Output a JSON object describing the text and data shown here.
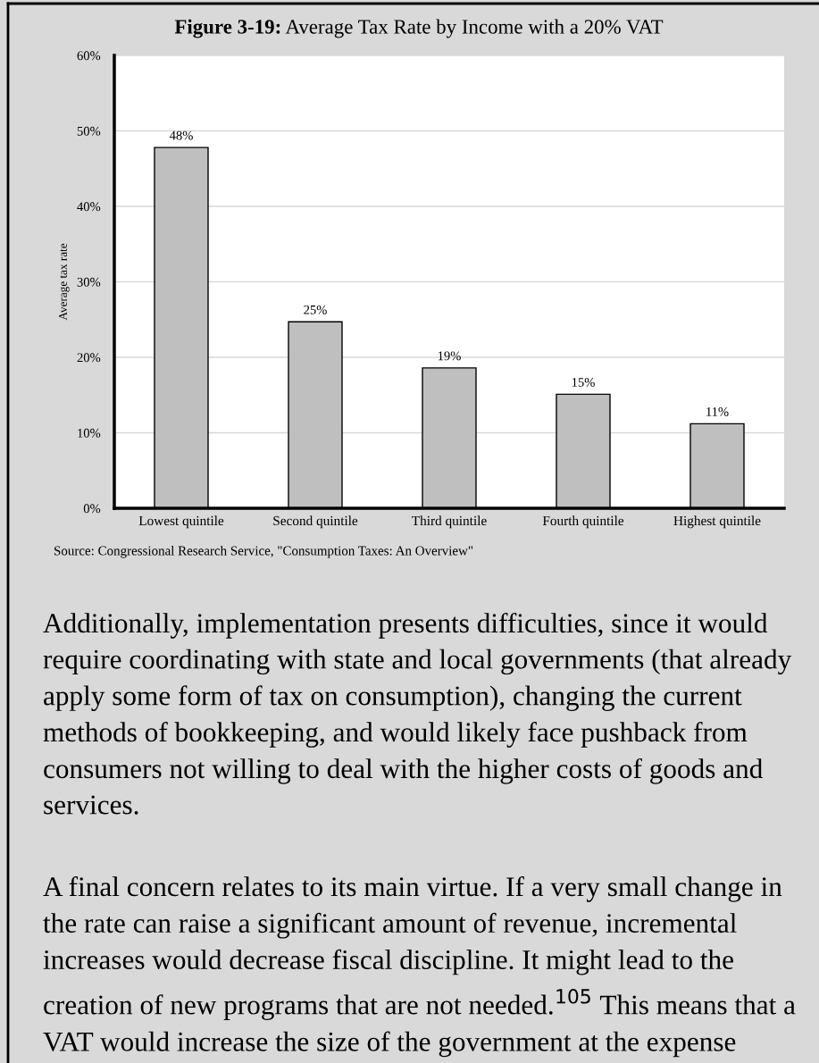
{
  "chart_data": {
    "type": "bar",
    "title": "Figure 3-19: Average Tax Rate by Income with a 20% VAT",
    "ylabel": "Average tax rate",
    "categories": [
      "Lowest quintile",
      "Second quintile",
      "Third quintile",
      "Fourth quintile",
      "Highest quintile"
    ],
    "values": [
      47.8,
      24.7,
      18.6,
      15.1,
      11.2
    ],
    "value_labels": [
      "48%",
      "25%",
      "19%",
      "15%",
      "11%"
    ],
    "color": "#bfbfbf",
    "ylim": [
      0,
      60
    ],
    "yticks": [
      {
        "value": 0,
        "label": "0%"
      },
      {
        "value": 10,
        "label": "10%"
      },
      {
        "value": 20,
        "label": "20%"
      },
      {
        "value": 30,
        "label": "30%"
      },
      {
        "value": 40,
        "label": "40%"
      },
      {
        "value": 50,
        "label": "50%"
      },
      {
        "value": 60,
        "label": "60%"
      }
    ],
    "grid": "y",
    "annotations": [
      "Source: Congressional Research Service, \"Consumption Taxes: An Overview\"",
      "Additionally, implementation presents difficulties, since it would require coordinating with state and local governments (that already apply some form of tax on consumption), changing the current methods of bookkeeping, and would likely face pushback from consumers not willing to deal with the higher costs of goods and services.",
      "A final concern relates to its main virtue. If a very small change in the rate can raise a significant amount of revenue, incremental increases would decrease fiscal discipline. It might lead to the creation of new programs that are not needed.$^{105}$ This means that a VAT would increase the size of the government at the expense"
    ]
  }
}
